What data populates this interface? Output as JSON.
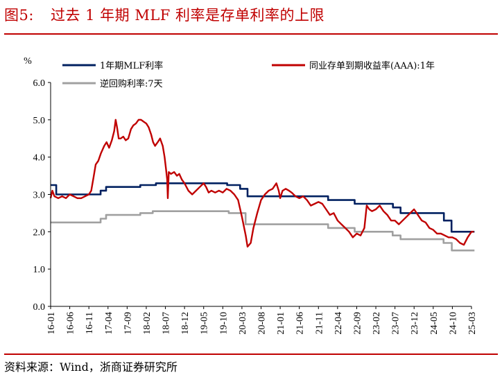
{
  "figure": {
    "label": "图5:",
    "title": "过去 1 年期 MLF 利率是存单利率的上限",
    "source": "资料来源：Wind，浙商证券研究所"
  },
  "chart_data": {
    "type": "line",
    "ylabel": "%",
    "ylim": [
      0,
      6
    ],
    "yticks": [
      "0.0",
      "1.0",
      "2.0",
      "3.0",
      "4.0",
      "5.0",
      "6.0"
    ],
    "xlim": [
      "2016-01",
      "2025-03"
    ],
    "xticks": [
      "16-01",
      "16-06",
      "16-11",
      "17-04",
      "17-09",
      "18-02",
      "18-07",
      "18-12",
      "19-05",
      "19-10",
      "20-03",
      "20-08",
      "21-01",
      "21-06",
      "21-11",
      "22-04",
      "22-09",
      "23-02",
      "23-07",
      "23-12",
      "24-05",
      "24-10",
      "25-03"
    ],
    "legend_position": "top",
    "series": [
      {
        "name": "1年期MLF利率",
        "color": "#002060",
        "style": "step",
        "points": [
          [
            "2016-01-01",
            3.25
          ],
          [
            "2016-02-15",
            3.0
          ],
          [
            "2017-02-03",
            3.1
          ],
          [
            "2017-03-16",
            3.2
          ],
          [
            "2017-12-14",
            3.25
          ],
          [
            "2018-04-17",
            3.3
          ],
          [
            "2019-11-05",
            3.25
          ],
          [
            "2020-02-17",
            3.15
          ],
          [
            "2020-04-15",
            2.95
          ],
          [
            "2022-01-17",
            2.85
          ],
          [
            "2022-08-15",
            2.75
          ],
          [
            "2023-06-15",
            2.65
          ],
          [
            "2023-08-15",
            2.5
          ],
          [
            "2024-07-25",
            2.3
          ],
          [
            "2024-09-25",
            2.0
          ],
          [
            "2025-03-25",
            2.0
          ]
        ]
      },
      {
        "name": "逆回购利率:7天",
        "color": "#a0a0a0",
        "style": "step",
        "points": [
          [
            "2016-01-01",
            2.25
          ],
          [
            "2017-02-03",
            2.35
          ],
          [
            "2017-03-16",
            2.45
          ],
          [
            "2017-12-14",
            2.5
          ],
          [
            "2018-03-22",
            2.55
          ],
          [
            "2019-11-18",
            2.5
          ],
          [
            "2020-03-30",
            2.2
          ],
          [
            "2022-01-17",
            2.1
          ],
          [
            "2022-08-15",
            2.0
          ],
          [
            "2023-06-13",
            1.9
          ],
          [
            "2023-08-15",
            1.8
          ],
          [
            "2024-07-22",
            1.7
          ],
          [
            "2024-09-27",
            1.5
          ],
          [
            "2025-03-25",
            1.5
          ]
        ]
      },
      {
        "name": "同业存单到期收益率(AAA):1年",
        "color": "#c00000",
        "style": "line",
        "points": [
          [
            "2016-01-01",
            2.9
          ],
          [
            "2016-01-15",
            3.1
          ],
          [
            "2016-02-01",
            2.95
          ],
          [
            "2016-03-01",
            2.9
          ],
          [
            "2016-04-01",
            2.95
          ],
          [
            "2016-05-01",
            2.9
          ],
          [
            "2016-06-01",
            3.0
          ],
          [
            "2016-07-01",
            2.95
          ],
          [
            "2016-08-01",
            2.9
          ],
          [
            "2016-09-01",
            2.9
          ],
          [
            "2016-10-01",
            2.95
          ],
          [
            "2016-11-01",
            3.0
          ],
          [
            "2016-11-20",
            3.1
          ],
          [
            "2016-12-10",
            3.5
          ],
          [
            "2016-12-25",
            3.8
          ],
          [
            "2017-01-15",
            3.9
          ],
          [
            "2017-02-05",
            4.1
          ],
          [
            "2017-03-01",
            4.3
          ],
          [
            "2017-03-20",
            4.4
          ],
          [
            "2017-04-10",
            4.25
          ],
          [
            "2017-05-01",
            4.45
          ],
          [
            "2017-05-20",
            4.7
          ],
          [
            "2017-06-01",
            5.0
          ],
          [
            "2017-06-12",
            4.8
          ],
          [
            "2017-06-25",
            4.5
          ],
          [
            "2017-07-10",
            4.5
          ],
          [
            "2017-08-01",
            4.55
          ],
          [
            "2017-08-20",
            4.45
          ],
          [
            "2017-09-10",
            4.5
          ],
          [
            "2017-10-01",
            4.75
          ],
          [
            "2017-10-20",
            4.85
          ],
          [
            "2017-11-10",
            4.9
          ],
          [
            "2017-12-01",
            5.0
          ],
          [
            "2017-12-20",
            5.0
          ],
          [
            "2018-01-10",
            4.95
          ],
          [
            "2018-02-01",
            4.9
          ],
          [
            "2018-02-20",
            4.8
          ],
          [
            "2018-03-10",
            4.6
          ],
          [
            "2018-03-25",
            4.4
          ],
          [
            "2018-04-10",
            4.3
          ],
          [
            "2018-05-01",
            4.4
          ],
          [
            "2018-05-20",
            4.5
          ],
          [
            "2018-06-10",
            4.3
          ],
          [
            "2018-06-25",
            4.0
          ],
          [
            "2018-07-05",
            3.7
          ],
          [
            "2018-07-15",
            3.4
          ],
          [
            "2018-07-20",
            2.9
          ],
          [
            "2018-07-28",
            3.6
          ],
          [
            "2018-08-15",
            3.55
          ],
          [
            "2018-09-10",
            3.6
          ],
          [
            "2018-10-01",
            3.5
          ],
          [
            "2018-10-20",
            3.55
          ],
          [
            "2018-11-10",
            3.4
          ],
          [
            "2018-12-01",
            3.3
          ],
          [
            "2019-01-01",
            3.1
          ],
          [
            "2019-02-01",
            3.0
          ],
          [
            "2019-03-01",
            3.1
          ],
          [
            "2019-04-01",
            3.2
          ],
          [
            "2019-05-01",
            3.3
          ],
          [
            "2019-05-20",
            3.2
          ],
          [
            "2019-06-10",
            3.05
          ],
          [
            "2019-07-01",
            3.1
          ],
          [
            "2019-08-01",
            3.05
          ],
          [
            "2019-09-01",
            3.1
          ],
          [
            "2019-10-01",
            3.05
          ],
          [
            "2019-11-01",
            3.15
          ],
          [
            "2019-12-01",
            3.1
          ],
          [
            "2020-01-01",
            3.0
          ],
          [
            "2020-02-01",
            2.85
          ],
          [
            "2020-03-01",
            2.4
          ],
          [
            "2020-04-01",
            1.9
          ],
          [
            "2020-04-15",
            1.6
          ],
          [
            "2020-05-10",
            1.7
          ],
          [
            "2020-06-01",
            2.1
          ],
          [
            "2020-07-01",
            2.5
          ],
          [
            "2020-08-01",
            2.85
          ],
          [
            "2020-09-01",
            3.0
          ],
          [
            "2020-10-01",
            3.1
          ],
          [
            "2020-11-01",
            3.15
          ],
          [
            "2020-12-01",
            3.3
          ],
          [
            "2020-12-20",
            3.1
          ],
          [
            "2021-01-01",
            2.9
          ],
          [
            "2021-01-20",
            3.1
          ],
          [
            "2021-02-15",
            3.15
          ],
          [
            "2021-03-10",
            3.1
          ],
          [
            "2021-04-01",
            3.05
          ],
          [
            "2021-05-01",
            2.95
          ],
          [
            "2021-06-01",
            2.9
          ],
          [
            "2021-07-01",
            2.95
          ],
          [
            "2021-08-01",
            2.85
          ],
          [
            "2021-09-01",
            2.7
          ],
          [
            "2021-10-01",
            2.75
          ],
          [
            "2021-11-01",
            2.8
          ],
          [
            "2021-12-01",
            2.75
          ],
          [
            "2022-01-01",
            2.6
          ],
          [
            "2022-02-01",
            2.45
          ],
          [
            "2022-03-01",
            2.5
          ],
          [
            "2022-04-01",
            2.3
          ],
          [
            "2022-05-01",
            2.2
          ],
          [
            "2022-06-01",
            2.1
          ],
          [
            "2022-07-01",
            2.0
          ],
          [
            "2022-08-01",
            1.85
          ],
          [
            "2022-09-01",
            1.95
          ],
          [
            "2022-10-01",
            1.9
          ],
          [
            "2022-11-01",
            2.1
          ],
          [
            "2022-11-20",
            2.7
          ],
          [
            "2022-12-10",
            2.6
          ],
          [
            "2023-01-01",
            2.55
          ],
          [
            "2023-02-01",
            2.6
          ],
          [
            "2023-03-01",
            2.7
          ],
          [
            "2023-04-01",
            2.55
          ],
          [
            "2023-05-01",
            2.45
          ],
          [
            "2023-06-01",
            2.3
          ],
          [
            "2023-07-01",
            2.3
          ],
          [
            "2023-08-01",
            2.2
          ],
          [
            "2023-09-01",
            2.3
          ],
          [
            "2023-10-01",
            2.4
          ],
          [
            "2023-11-01",
            2.5
          ],
          [
            "2023-12-01",
            2.6
          ],
          [
            "2024-01-01",
            2.45
          ],
          [
            "2024-02-01",
            2.3
          ],
          [
            "2024-03-01",
            2.25
          ],
          [
            "2024-04-01",
            2.1
          ],
          [
            "2024-05-01",
            2.05
          ],
          [
            "2024-06-01",
            1.95
          ],
          [
            "2024-07-01",
            1.95
          ],
          [
            "2024-08-01",
            1.9
          ],
          [
            "2024-09-01",
            1.85
          ],
          [
            "2024-10-01",
            1.85
          ],
          [
            "2024-11-01",
            1.8
          ],
          [
            "2024-12-01",
            1.7
          ],
          [
            "2025-01-01",
            1.65
          ],
          [
            "2025-02-01",
            1.85
          ],
          [
            "2025-03-01",
            2.0
          ],
          [
            "2025-03-20",
            2.0
          ]
        ]
      }
    ]
  }
}
